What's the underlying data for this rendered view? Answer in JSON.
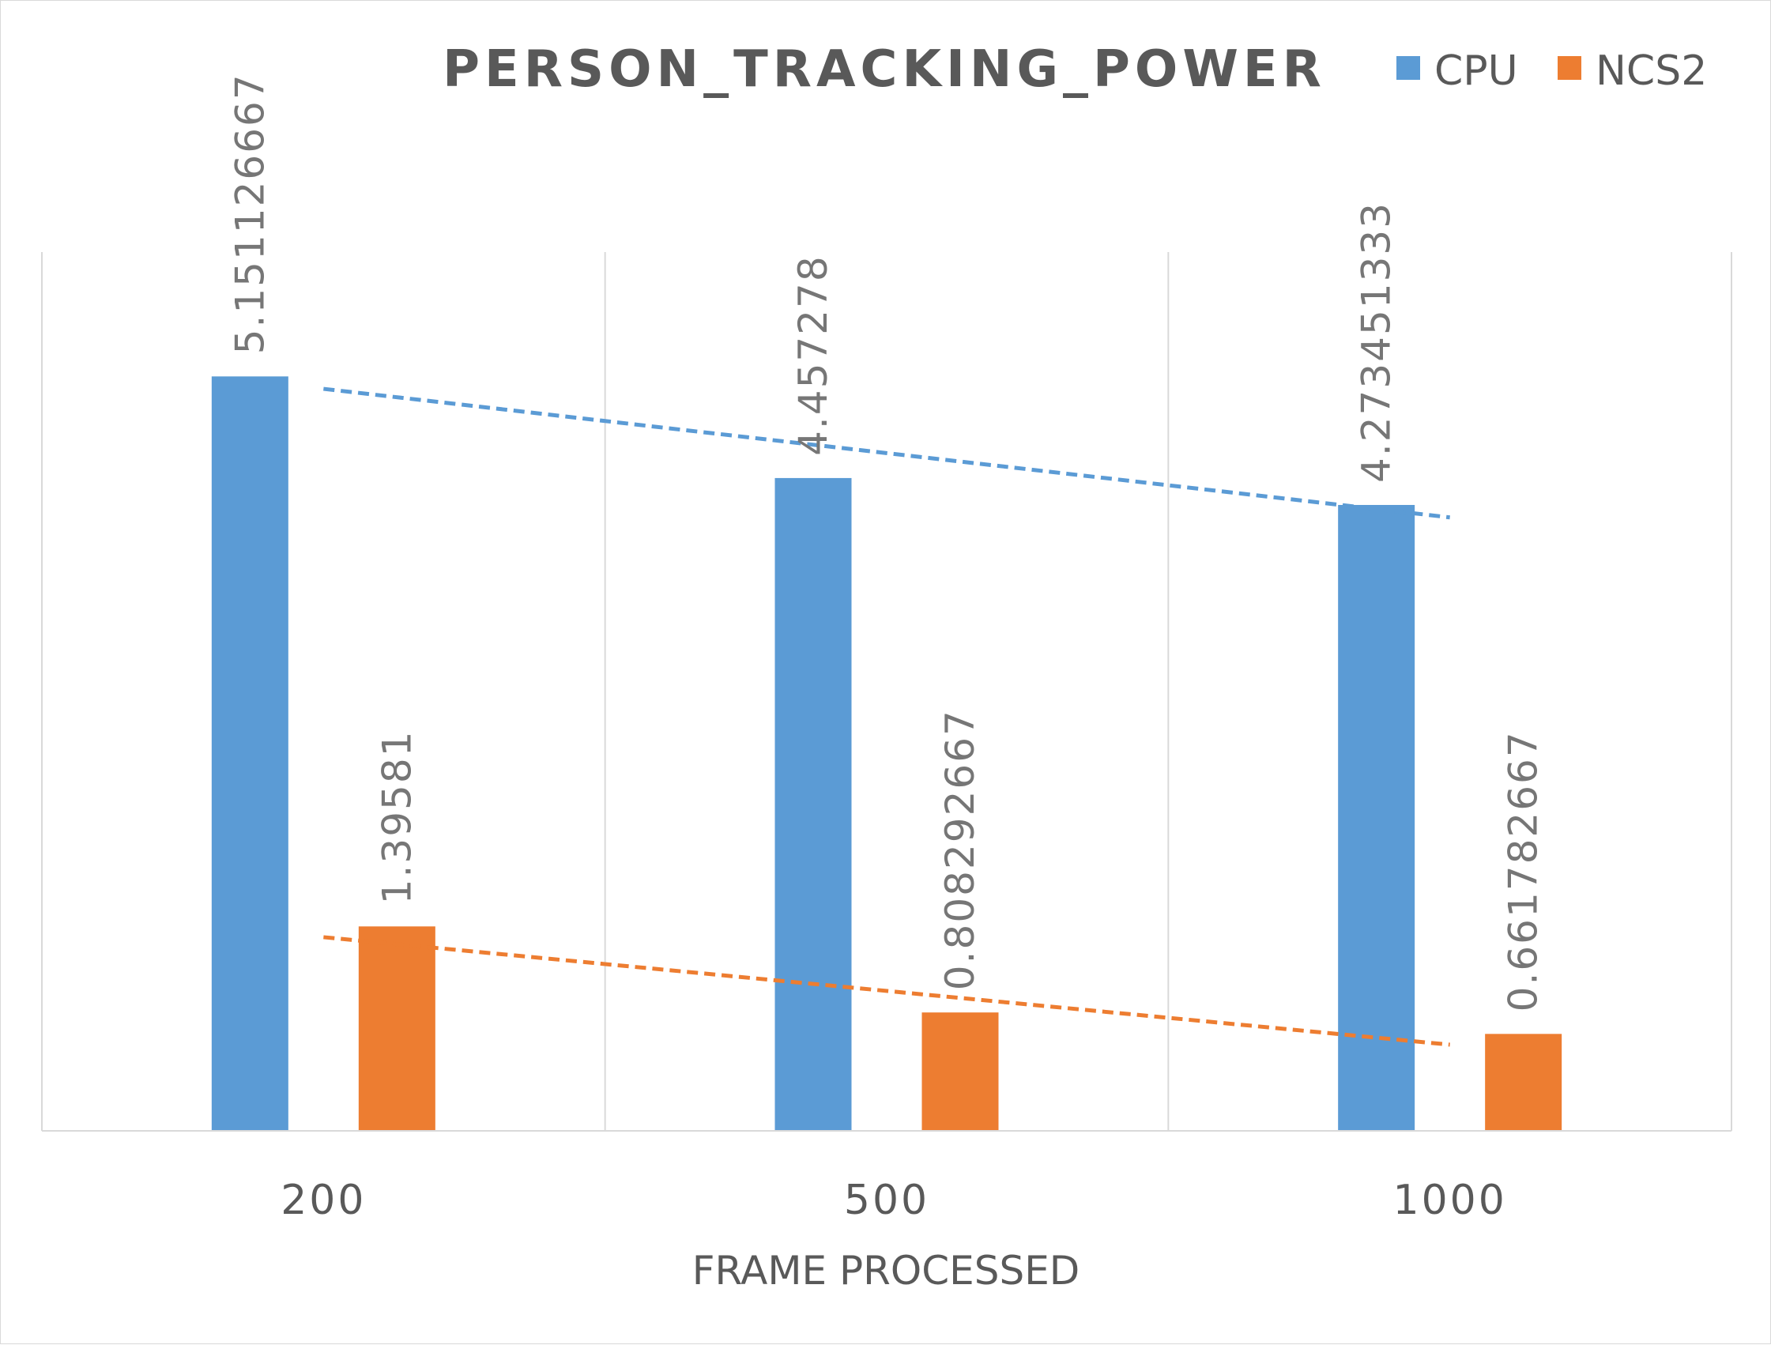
{
  "chart_data": {
    "type": "bar",
    "title": "PERSON_TRACKING_POWER",
    "xlabel": "FRAME PROCESSED",
    "ylabel": "",
    "categories": [
      "200",
      "500",
      "1000"
    ],
    "series": [
      {
        "name": "CPU",
        "color": "#5b9bd5",
        "values": [
          5.151126667,
          4.457278,
          4.273451333
        ],
        "labels": [
          "5.151126667",
          "4.457278",
          "4.273451333"
        ]
      },
      {
        "name": "NCS2",
        "color": "#ed7d31",
        "values": [
          1.39581,
          0.808292667,
          0.661782667
        ],
        "labels": [
          "1.39581",
          "0.808292667",
          "0.661782667"
        ]
      }
    ],
    "trendlines": [
      {
        "series": "CPU",
        "type": "linear",
        "style": "dashed",
        "color": "#5b9bd5"
      },
      {
        "series": "NCS2",
        "type": "linear",
        "style": "dashed",
        "color": "#ed7d31"
      }
    ],
    "ylim": [
      0,
      6
    ],
    "y_axis_visible": false,
    "grid": "vertical",
    "legend": "top-right",
    "data_labels": "rotated-vertical"
  }
}
